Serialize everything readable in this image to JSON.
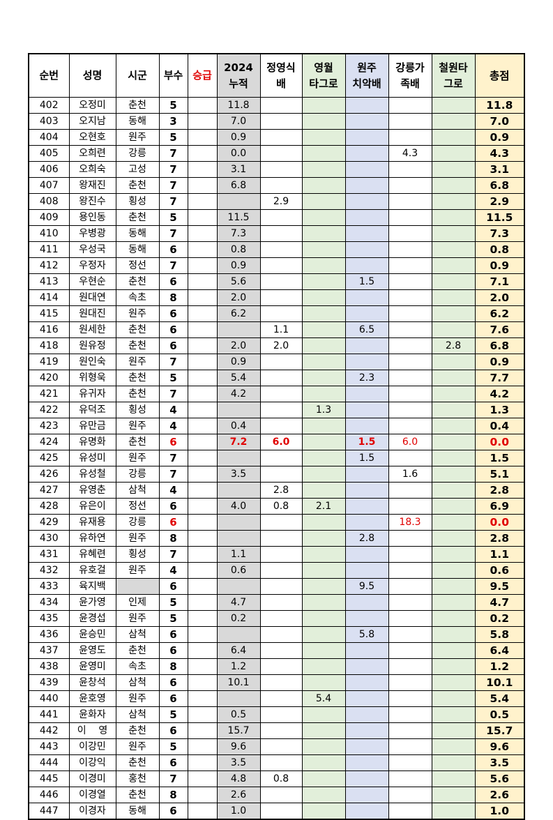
{
  "headers": [
    "순번",
    "성명",
    "시군",
    "부수",
    "승급",
    "2024\n누적",
    "정영식\n배",
    "영월\n타그로",
    "원주\n치악배",
    "강릉가\n족배",
    "철원타\n그로",
    "총점"
  ],
  "colors": {
    "promotion_red": "#e00000",
    "cum_bg": "#d9d9d9",
    "yeongwol_bg": "#e2efda",
    "wonju_bg": "#dae0f2",
    "cheorwon_bg": "#e2efda",
    "total_bg": "#fff2cc"
  },
  "rows": [
    {
      "no": "402",
      "name": "오정미",
      "city": "춘천",
      "bu": "5",
      "promo": "",
      "cum": "11.8",
      "jys": "",
      "yw": "",
      "wj": "",
      "gn": "",
      "cw": "",
      "total": "11.8"
    },
    {
      "no": "403",
      "name": "오지남",
      "city": "동해",
      "bu": "3",
      "promo": "",
      "cum": "7.0",
      "jys": "",
      "yw": "",
      "wj": "",
      "gn": "",
      "cw": "",
      "total": "7.0"
    },
    {
      "no": "404",
      "name": "오현호",
      "city": "원주",
      "bu": "5",
      "promo": "",
      "cum": "0.9",
      "jys": "",
      "yw": "",
      "wj": "",
      "gn": "",
      "cw": "",
      "total": "0.9"
    },
    {
      "no": "405",
      "name": "오희련",
      "city": "강릉",
      "bu": "7",
      "promo": "",
      "cum": "0.0",
      "jys": "",
      "yw": "",
      "wj": "",
      "gn": "4.3",
      "cw": "",
      "total": "4.3"
    },
    {
      "no": "406",
      "name": "오희숙",
      "city": "고성",
      "bu": "7",
      "promo": "",
      "cum": "3.1",
      "jys": "",
      "yw": "",
      "wj": "",
      "gn": "",
      "cw": "",
      "total": "3.1"
    },
    {
      "no": "407",
      "name": "왕재진",
      "city": "춘천",
      "bu": "7",
      "promo": "",
      "cum": "6.8",
      "jys": "",
      "yw": "",
      "wj": "",
      "gn": "",
      "cw": "",
      "total": "6.8"
    },
    {
      "no": "408",
      "name": "왕진수",
      "city": "횡성",
      "bu": "7",
      "promo": "",
      "cum": "",
      "jys": "2.9",
      "yw": "",
      "wj": "",
      "gn": "",
      "cw": "",
      "total": "2.9"
    },
    {
      "no": "409",
      "name": "용인동",
      "city": "춘천",
      "bu": "5",
      "promo": "",
      "cum": "11.5",
      "jys": "",
      "yw": "",
      "wj": "",
      "gn": "",
      "cw": "",
      "total": "11.5"
    },
    {
      "no": "410",
      "name": "우병광",
      "city": "동해",
      "bu": "7",
      "promo": "",
      "cum": "7.3",
      "jys": "",
      "yw": "",
      "wj": "",
      "gn": "",
      "cw": "",
      "total": "7.3"
    },
    {
      "no": "411",
      "name": "우성국",
      "city": "동해",
      "bu": "6",
      "promo": "",
      "cum": "0.8",
      "jys": "",
      "yw": "",
      "wj": "",
      "gn": "",
      "cw": "",
      "total": "0.8"
    },
    {
      "no": "412",
      "name": "우정자",
      "city": "정선",
      "bu": "7",
      "promo": "",
      "cum": "0.9",
      "jys": "",
      "yw": "",
      "wj": "",
      "gn": "",
      "cw": "",
      "total": "0.9"
    },
    {
      "no": "413",
      "name": "우현순",
      "city": "춘천",
      "bu": "6",
      "promo": "",
      "cum": "5.6",
      "jys": "",
      "yw": "",
      "wj": "1.5",
      "gn": "",
      "cw": "",
      "total": "7.1"
    },
    {
      "no": "414",
      "name": "원대연",
      "city": "속초",
      "bu": "8",
      "promo": "",
      "cum": "2.0",
      "jys": "",
      "yw": "",
      "wj": "",
      "gn": "",
      "cw": "",
      "total": "2.0"
    },
    {
      "no": "415",
      "name": "원대진",
      "city": "원주",
      "bu": "6",
      "promo": "",
      "cum": "6.2",
      "jys": "",
      "yw": "",
      "wj": "",
      "gn": "",
      "cw": "",
      "total": "6.2"
    },
    {
      "no": "416",
      "name": "원세한",
      "city": "춘천",
      "bu": "6",
      "promo": "",
      "cum": "",
      "jys": "1.1",
      "yw": "",
      "wj": "6.5",
      "gn": "",
      "cw": "",
      "total": "7.6"
    },
    {
      "no": "418",
      "name": "원유정",
      "city": "춘천",
      "bu": "6",
      "promo": "",
      "cum": "2.0",
      "jys": "2.0",
      "yw": "",
      "wj": "",
      "gn": "",
      "cw": "2.8",
      "total": "6.8"
    },
    {
      "no": "419",
      "name": "원인숙",
      "city": "원주",
      "bu": "7",
      "promo": "",
      "cum": "0.9",
      "jys": "",
      "yw": "",
      "wj": "",
      "gn": "",
      "cw": "",
      "total": "0.9"
    },
    {
      "no": "420",
      "name": "위형욱",
      "city": "춘천",
      "bu": "5",
      "promo": "",
      "cum": "5.4",
      "jys": "",
      "yw": "",
      "wj": "2.3",
      "gn": "",
      "cw": "",
      "total": "7.7"
    },
    {
      "no": "421",
      "name": "유귀자",
      "city": "춘천",
      "bu": "7",
      "promo": "",
      "cum": "4.2",
      "jys": "",
      "yw": "",
      "wj": "",
      "gn": "",
      "cw": "",
      "total": "4.2"
    },
    {
      "no": "422",
      "name": "유덕조",
      "city": "횡성",
      "bu": "4",
      "promo": "",
      "cum": "",
      "jys": "",
      "yw": "1.3",
      "wj": "",
      "gn": "",
      "cw": "",
      "total": "1.3"
    },
    {
      "no": "423",
      "name": "유만금",
      "city": "원주",
      "bu": "4",
      "promo": "",
      "cum": "0.4",
      "jys": "",
      "yw": "",
      "wj": "",
      "gn": "",
      "cw": "",
      "total": "0.4"
    },
    {
      "no": "424",
      "name": "유명화",
      "city": "춘천",
      "bu": "6",
      "promo": "",
      "cum": "7.2",
      "jys": "6.0",
      "yw": "",
      "wj": "1.5",
      "gn": "6.0",
      "cw": "",
      "total": "0.0",
      "red": [
        "bu",
        "cum",
        "jys",
        "wj",
        "gn",
        "total"
      ],
      "bold_red": [
        "bu",
        "cum",
        "jys",
        "wj",
        "total"
      ]
    },
    {
      "no": "425",
      "name": "유성미",
      "city": "원주",
      "bu": "7",
      "promo": "",
      "cum": "",
      "jys": "",
      "yw": "",
      "wj": "1.5",
      "gn": "",
      "cw": "",
      "total": "1.5"
    },
    {
      "no": "426",
      "name": "유성철",
      "city": "강릉",
      "bu": "7",
      "promo": "",
      "cum": "3.5",
      "jys": "",
      "yw": "",
      "wj": "",
      "gn": "1.6",
      "cw": "",
      "total": "5.1"
    },
    {
      "no": "427",
      "name": "유영춘",
      "city": "삼척",
      "bu": "4",
      "promo": "",
      "cum": "",
      "jys": "2.8",
      "yw": "",
      "wj": "",
      "gn": "",
      "cw": "",
      "total": "2.8"
    },
    {
      "no": "428",
      "name": "유은이",
      "city": "정선",
      "bu": "6",
      "promo": "",
      "cum": "4.0",
      "jys": "0.8",
      "yw": "2.1",
      "wj": "",
      "gn": "",
      "cw": "",
      "total": "6.9"
    },
    {
      "no": "429",
      "name": "유재용",
      "city": "강릉",
      "bu": "6",
      "promo": "",
      "cum": "",
      "jys": "",
      "yw": "",
      "wj": "",
      "gn": "18.3",
      "cw": "",
      "total": "0.0",
      "red": [
        "bu",
        "gn",
        "total"
      ],
      "bold_red": [
        "bu",
        "total"
      ]
    },
    {
      "no": "430",
      "name": "유하연",
      "city": "원주",
      "bu": "8",
      "promo": "",
      "cum": "",
      "jys": "",
      "yw": "",
      "wj": "2.8",
      "gn": "",
      "cw": "",
      "total": "2.8"
    },
    {
      "no": "431",
      "name": "유혜련",
      "city": "횡성",
      "bu": "7",
      "promo": "",
      "cum": "1.1",
      "jys": "",
      "yw": "",
      "wj": "",
      "gn": "",
      "cw": "",
      "total": "1.1"
    },
    {
      "no": "432",
      "name": "유호걸",
      "city": "원주",
      "bu": "4",
      "promo": "",
      "cum": "0.6",
      "jys": "",
      "yw": "",
      "wj": "",
      "gn": "",
      "cw": "",
      "total": "0.6"
    },
    {
      "no": "433",
      "name": "육지백",
      "city": "",
      "bu": "6",
      "promo": "",
      "cum": "",
      "jys": "",
      "yw": "",
      "wj": "9.5",
      "gn": "",
      "cw": "",
      "total": "9.5",
      "gray_city": true
    },
    {
      "no": "434",
      "name": "윤가영",
      "city": "인제",
      "bu": "5",
      "promo": "",
      "cum": "4.7",
      "jys": "",
      "yw": "",
      "wj": "",
      "gn": "",
      "cw": "",
      "total": "4.7"
    },
    {
      "no": "435",
      "name": "윤경섭",
      "city": "원주",
      "bu": "5",
      "promo": "",
      "cum": "0.2",
      "jys": "",
      "yw": "",
      "wj": "",
      "gn": "",
      "cw": "",
      "total": "0.2"
    },
    {
      "no": "436",
      "name": "윤승민",
      "city": "삼척",
      "bu": "6",
      "promo": "",
      "cum": "",
      "jys": "",
      "yw": "",
      "wj": "5.8",
      "gn": "",
      "cw": "",
      "total": "5.8"
    },
    {
      "no": "437",
      "name": "윤영도",
      "city": "춘천",
      "bu": "6",
      "promo": "",
      "cum": "6.4",
      "jys": "",
      "yw": "",
      "wj": "",
      "gn": "",
      "cw": "",
      "total": "6.4"
    },
    {
      "no": "438",
      "name": "윤영미",
      "city": "속초",
      "bu": "8",
      "promo": "",
      "cum": "1.2",
      "jys": "",
      "yw": "",
      "wj": "",
      "gn": "",
      "cw": "",
      "total": "1.2"
    },
    {
      "no": "439",
      "name": "윤창석",
      "city": "삼척",
      "bu": "6",
      "promo": "",
      "cum": "10.1",
      "jys": "",
      "yw": "",
      "wj": "",
      "gn": "",
      "cw": "",
      "total": "10.1"
    },
    {
      "no": "440",
      "name": "윤호영",
      "city": "원주",
      "bu": "6",
      "promo": "",
      "cum": "",
      "jys": "",
      "yw": "5.4",
      "wj": "",
      "gn": "",
      "cw": "",
      "total": "5.4"
    },
    {
      "no": "441",
      "name": "윤화자",
      "city": "삼척",
      "bu": "5",
      "promo": "",
      "cum": "0.5",
      "jys": "",
      "yw": "",
      "wj": "",
      "gn": "",
      "cw": "",
      "total": "0.5"
    },
    {
      "no": "442",
      "name": "이    영",
      "city": "춘천",
      "bu": "6",
      "promo": "",
      "cum": "15.7",
      "jys": "",
      "yw": "",
      "wj": "",
      "gn": "",
      "cw": "",
      "total": "15.7"
    },
    {
      "no": "443",
      "name": "이강민",
      "city": "원주",
      "bu": "5",
      "promo": "",
      "cum": "9.6",
      "jys": "",
      "yw": "",
      "wj": "",
      "gn": "",
      "cw": "",
      "total": "9.6"
    },
    {
      "no": "444",
      "name": "이강익",
      "city": "춘천",
      "bu": "6",
      "promo": "",
      "cum": "3.5",
      "jys": "",
      "yw": "",
      "wj": "",
      "gn": "",
      "cw": "",
      "total": "3.5"
    },
    {
      "no": "445",
      "name": "이경미",
      "city": "홍천",
      "bu": "7",
      "promo": "",
      "cum": "4.8",
      "jys": "0.8",
      "yw": "",
      "wj": "",
      "gn": "",
      "cw": "",
      "total": "5.6"
    },
    {
      "no": "446",
      "name": "이경열",
      "city": "춘천",
      "bu": "8",
      "promo": "",
      "cum": "2.6",
      "jys": "",
      "yw": "",
      "wj": "",
      "gn": "",
      "cw": "",
      "total": "2.6"
    },
    {
      "no": "447",
      "name": "이경자",
      "city": "동해",
      "bu": "6",
      "promo": "",
      "cum": "1.0",
      "jys": "",
      "yw": "",
      "wj": "",
      "gn": "",
      "cw": "",
      "total": "1.0"
    }
  ]
}
